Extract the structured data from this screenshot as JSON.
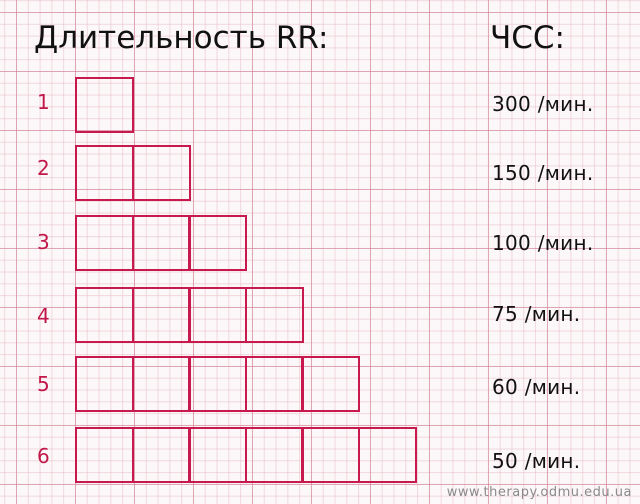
{
  "header": {
    "left_title": "Длительность RR:",
    "right_title": "ЧСС:"
  },
  "rows": [
    {
      "number": "1",
      "boxes": 1,
      "rate": "300 /мин."
    },
    {
      "number": "2",
      "boxes": 2,
      "rate": "150 /мин."
    },
    {
      "number": "3",
      "boxes": 3,
      "rate": "100 /мин."
    },
    {
      "number": "4",
      "boxes": 4,
      "rate": "75 /мин."
    },
    {
      "number": "5",
      "boxes": 5,
      "rate": "60 /мин."
    },
    {
      "number": "6",
      "boxes": 6,
      "rate": "50 /мин."
    }
  ],
  "footer": {
    "credit": "www.therapy.odmu.edu.ua"
  },
  "colors": {
    "accent": "#c8194f",
    "grid": "#d07a90",
    "text": "#111111"
  }
}
